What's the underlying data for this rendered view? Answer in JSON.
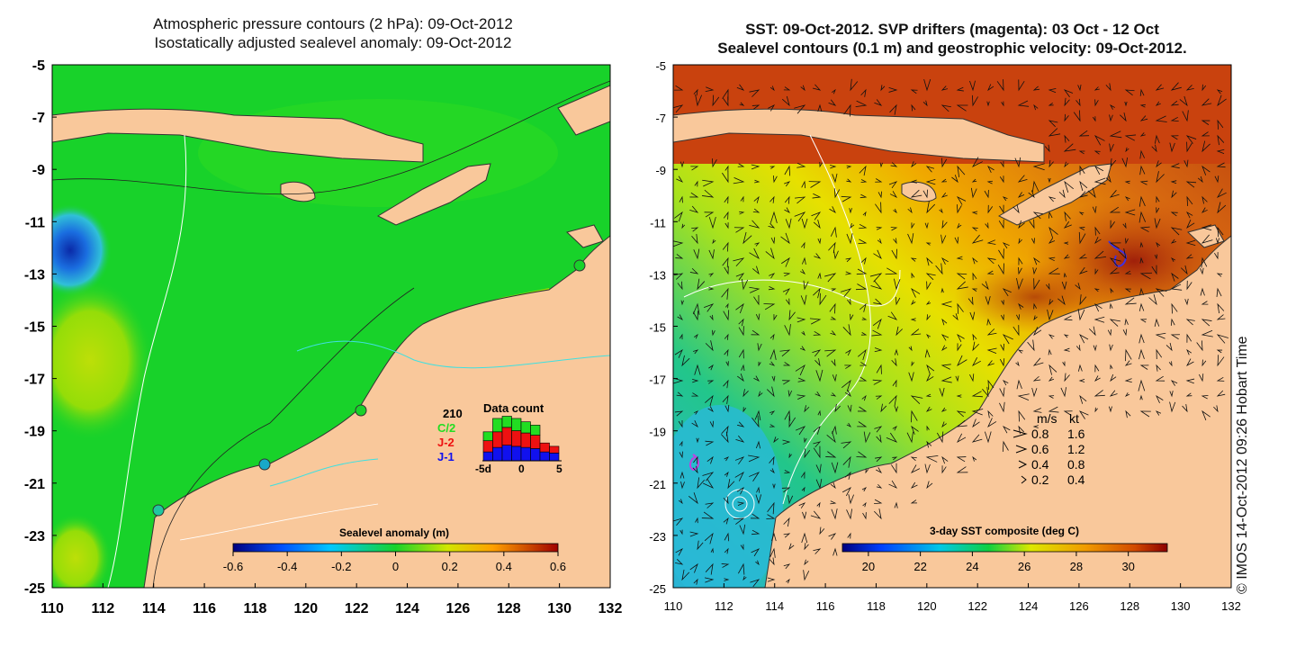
{
  "left_panel": {
    "title_line1": "Atmospheric pressure contours (2 hPa): 09-Oct-2012",
    "title_line2": "Isostatically adjusted sealevel anomaly: 09-Oct-2012",
    "y_ticks": [
      "-5",
      "-7",
      "-9",
      "-11",
      "-13",
      "-15",
      "-17",
      "-19",
      "-21",
      "-23",
      "-25"
    ],
    "x_ticks": [
      "110",
      "112",
      "114",
      "116",
      "118",
      "120",
      "122",
      "124",
      "126",
      "128",
      "130",
      "132"
    ],
    "colorbar": {
      "label": "Sealevel anomaly (m)",
      "ticks": [
        "-0.6",
        "-0.4",
        "-0.2",
        "0",
        "0.2",
        "0.4",
        "0.6"
      ],
      "range": [
        -0.6,
        0.6
      ]
    },
    "data_count_inset": {
      "title": "Data count",
      "max_label": "210",
      "satellites": [
        {
          "name": "C/2",
          "color": "#22dd22"
        },
        {
          "name": "J-2",
          "color": "#ee1111"
        },
        {
          "name": "J-1",
          "color": "#1111ee"
        }
      ],
      "x_ticks": [
        "-5d",
        "0",
        "5"
      ],
      "bins": [
        {
          "j1": 40,
          "j2": 50,
          "c2": 40
        },
        {
          "j1": 60,
          "j2": 70,
          "c2": 60
        },
        {
          "j1": 70,
          "j2": 80,
          "c2": 50
        },
        {
          "j1": 65,
          "j2": 70,
          "c2": 55
        },
        {
          "j1": 60,
          "j2": 65,
          "c2": 50
        },
        {
          "j1": 55,
          "j2": 60,
          "c2": 45
        },
        {
          "j1": 40,
          "j2": 40,
          "c2": 0
        },
        {
          "j1": 35,
          "j2": 30,
          "c2": 0
        }
      ]
    }
  },
  "right_panel": {
    "title_line1": "SST: 09-Oct-2012. SVP drifters (magenta): 03 Oct - 12 Oct",
    "title_line2": "Sealevel contours (0.1 m) and geostrophic velocity: 09-Oct-2012.",
    "y_ticks": [
      "-5",
      "-7",
      "-9",
      "-11",
      "-13",
      "-15",
      "-17",
      "-19",
      "-21",
      "-23",
      "-25"
    ],
    "x_ticks": [
      "110",
      "112",
      "114",
      "116",
      "118",
      "120",
      "122",
      "124",
      "126",
      "128",
      "130",
      "132"
    ],
    "colorbar": {
      "label": "3-day SST composite (deg C)",
      "ticks": [
        "20",
        "22",
        "24",
        "26",
        "28",
        "30"
      ],
      "range": [
        19,
        31.5
      ]
    },
    "velocity_legend": {
      "header_ms": "m/s",
      "header_kt": "kt",
      "rows": [
        {
          "ms": "0.8",
          "kt": "1.6"
        },
        {
          "ms": "0.6",
          "kt": "1.2"
        },
        {
          "ms": "0.4",
          "kt": "0.8"
        },
        {
          "ms": "0.2",
          "kt": "0.4"
        }
      ]
    }
  },
  "credit": "© IMOS 14-Oct-2012 09:26 Hobart Time",
  "colors": {
    "land": "#f9c89b",
    "sla_background": "#18d22a",
    "sst_north": "#c9420e",
    "sst_south": "#2ab3d6"
  }
}
